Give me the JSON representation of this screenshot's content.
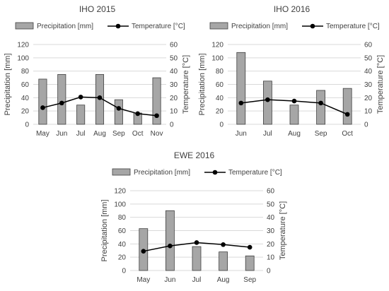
{
  "chart_data": [
    {
      "type": "bar",
      "title": "IHO 2015",
      "categories": [
        "May",
        "Jun",
        "Jul",
        "Aug",
        "Sep",
        "Oct",
        "Nov"
      ],
      "series": [
        {
          "name": "Precipitation [mm]",
          "type": "bar",
          "axis": "left",
          "values": [
            68,
            75,
            29,
            75,
            37,
            17,
            70
          ]
        },
        {
          "name": "Temperature [°C]",
          "type": "line",
          "axis": "right",
          "values": [
            12.5,
            16,
            20.5,
            20,
            12,
            8,
            6.5
          ]
        }
      ],
      "ylabel": "Precipitation [mm]",
      "y2label": "Temperature [°C]",
      "ylim": [
        0,
        120
      ],
      "y2lim": [
        0,
        60
      ],
      "yticks": [
        0,
        20,
        40,
        60,
        80,
        100,
        120
      ],
      "y2ticks": [
        0,
        10,
        20,
        30,
        40,
        50,
        60
      ],
      "grid": true,
      "legend": "top"
    },
    {
      "type": "bar",
      "title": "IHO 2016",
      "categories": [
        "Jun",
        "Jul",
        "Aug",
        "Sep",
        "Oct"
      ],
      "series": [
        {
          "name": "Precipitation [mm]",
          "type": "bar",
          "axis": "left",
          "values": [
            108,
            65,
            29,
            51,
            54
          ]
        },
        {
          "name": "Temperature [°C]",
          "type": "line",
          "axis": "right",
          "values": [
            16,
            18.5,
            17.5,
            16,
            7.5
          ]
        }
      ],
      "ylabel": "Precipitation [mm]",
      "y2label": "Temperature [°C]",
      "ylim": [
        0,
        120
      ],
      "y2lim": [
        0,
        60
      ],
      "yticks": [
        0,
        20,
        40,
        60,
        80,
        100,
        120
      ],
      "y2ticks": [
        0,
        10,
        20,
        30,
        40,
        50,
        60
      ],
      "grid": true,
      "legend": "top"
    },
    {
      "type": "bar",
      "title": "EWE 2016",
      "categories": [
        "May",
        "Jun",
        "Jul",
        "Aug",
        "Sep"
      ],
      "series": [
        {
          "name": "Precipitation [mm]",
          "type": "bar",
          "axis": "left",
          "values": [
            63,
            90,
            36,
            28,
            22
          ]
        },
        {
          "name": "Temperature [°C]",
          "type": "line",
          "axis": "right",
          "values": [
            14.5,
            18.5,
            21,
            19.5,
            17.5
          ]
        }
      ],
      "ylabel": "Precipitation [mm]",
      "y2label": "Temperature [°C]",
      "ylim": [
        0,
        120
      ],
      "y2lim": [
        0,
        60
      ],
      "yticks": [
        0,
        20,
        40,
        60,
        80,
        100,
        120
      ],
      "y2ticks": [
        0,
        10,
        20,
        30,
        40,
        50,
        60
      ],
      "grid": true,
      "legend": "top"
    }
  ]
}
